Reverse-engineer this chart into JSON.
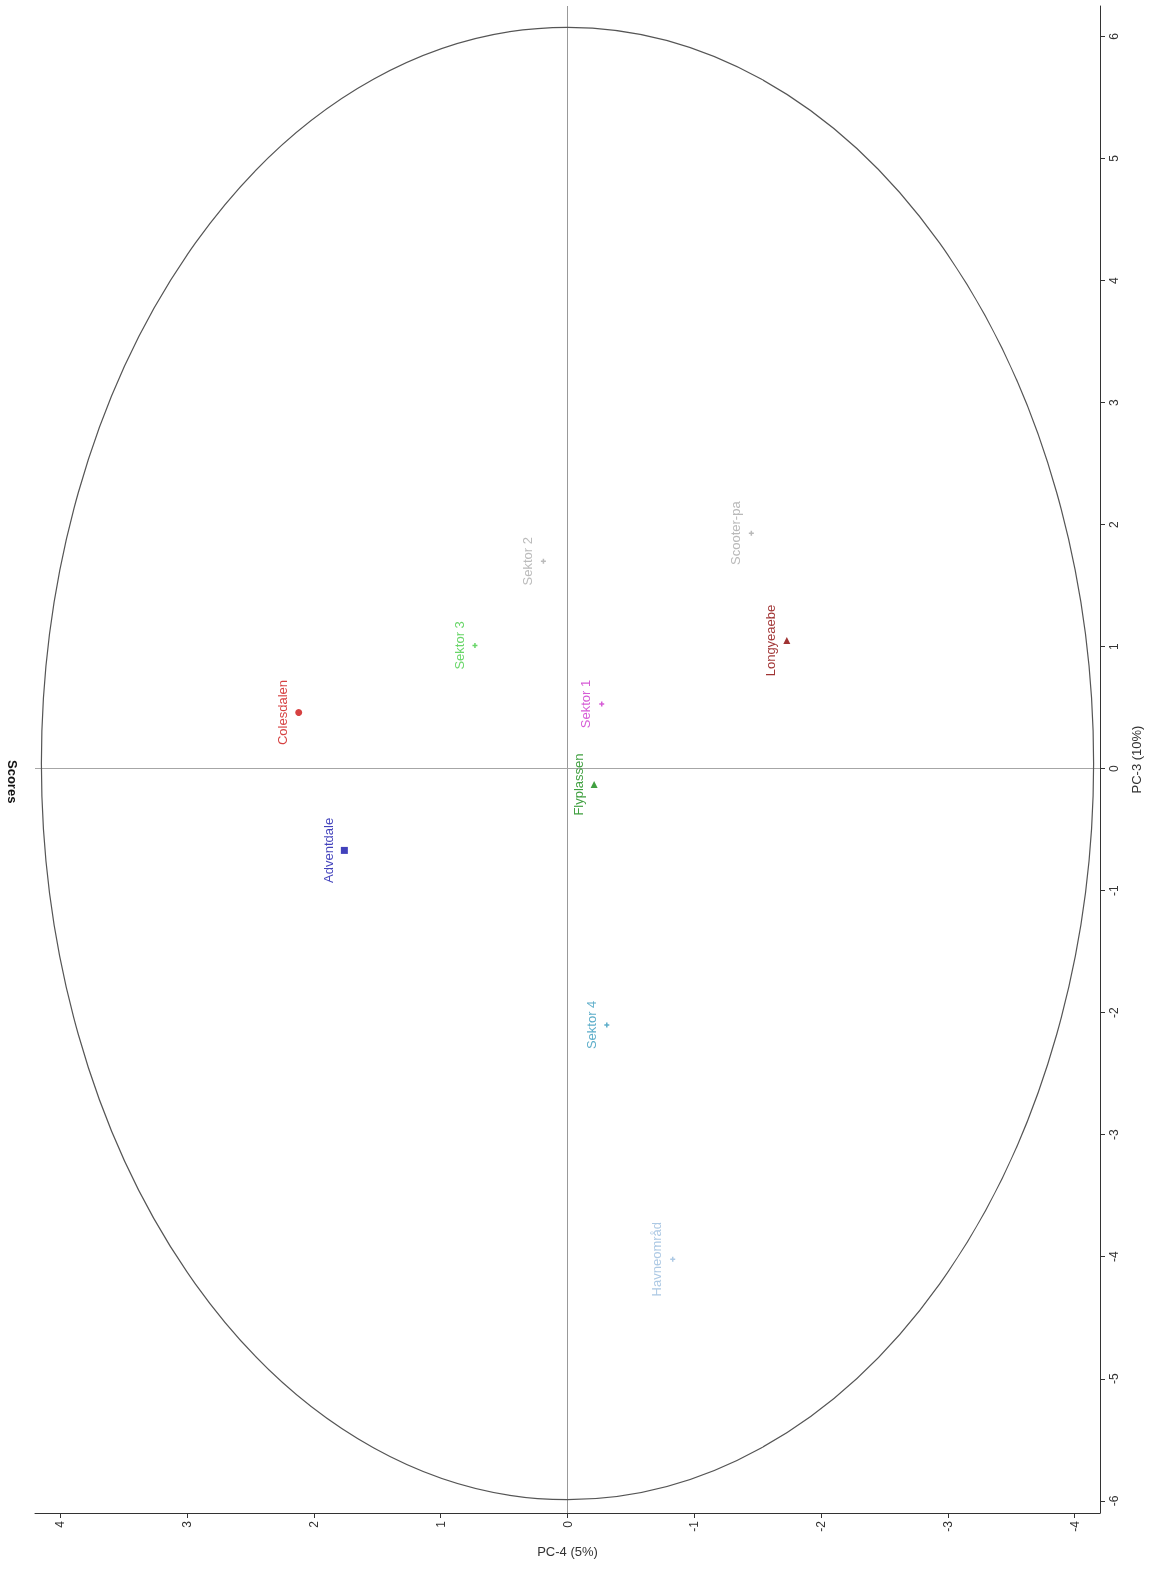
{
  "chart_data": {
    "type": "scatter",
    "title": "Scores",
    "xlabel": "PC-4 (5%)",
    "ylabel": "PC-3 (10%)",
    "xlim": [
      4.2,
      -4.2
    ],
    "xticks": [
      4,
      3,
      2,
      1,
      0,
      -1,
      -2,
      -3,
      -4
    ],
    "ylim": [
      -6.1,
      6.25
    ],
    "yticks": [
      -6,
      -5,
      -4,
      -3,
      -2,
      -1,
      0,
      1,
      2,
      3,
      4,
      5,
      6
    ],
    "grid": false,
    "legend": false,
    "ref_lines": [
      {
        "axis": "x",
        "value": 0,
        "color": "#999999"
      },
      {
        "axis": "y",
        "value": 0,
        "color": "#a6a6a6"
      }
    ],
    "series": [
      {
        "name": "Colesdalen",
        "color": "#cc1111",
        "marker": "circle",
        "x": [
          2.12
        ],
        "values": [
          0.46
        ]
      },
      {
        "name": "Adventdale",
        "color": "#1111aa",
        "marker": "square",
        "x": [
          1.76
        ],
        "values": [
          -0.67
        ]
      },
      {
        "name": "Sektor 3",
        "color": "#44cc44",
        "marker": "cross",
        "x": [
          0.73
        ],
        "values": [
          1.01
        ]
      },
      {
        "name": "Sektor 2",
        "color": "#aaaaaa",
        "marker": "cross",
        "x": [
          0.19
        ],
        "values": [
          1.7
        ]
      },
      {
        "name": "Flyplassen",
        "color": "#118811",
        "marker": "triangle",
        "x": [
          -0.21
        ],
        "values": [
          -0.13
        ]
      },
      {
        "name": "Sektor 1",
        "color": "#cc33cc",
        "marker": "cross",
        "x": [
          -0.27
        ],
        "values": [
          0.53
        ]
      },
      {
        "name": "Longyeaebe",
        "color": "#880000",
        "marker": "triangle",
        "x": [
          -1.73
        ],
        "values": [
          1.05
        ]
      },
      {
        "name": "Scooter-pa",
        "color": "#a8a8a8",
        "marker": "cross",
        "x": [
          -1.45
        ],
        "values": [
          1.93
        ]
      },
      {
        "name": "Sektor 4",
        "color": "#3399bb",
        "marker": "cross",
        "x": [
          -0.31
        ],
        "values": [
          -2.1
        ]
      },
      {
        "name": "Havneområd",
        "color": "#99bbdd",
        "marker": "cross",
        "x": [
          -0.83
        ],
        "values": [
          -4.02
        ]
      }
    ]
  }
}
